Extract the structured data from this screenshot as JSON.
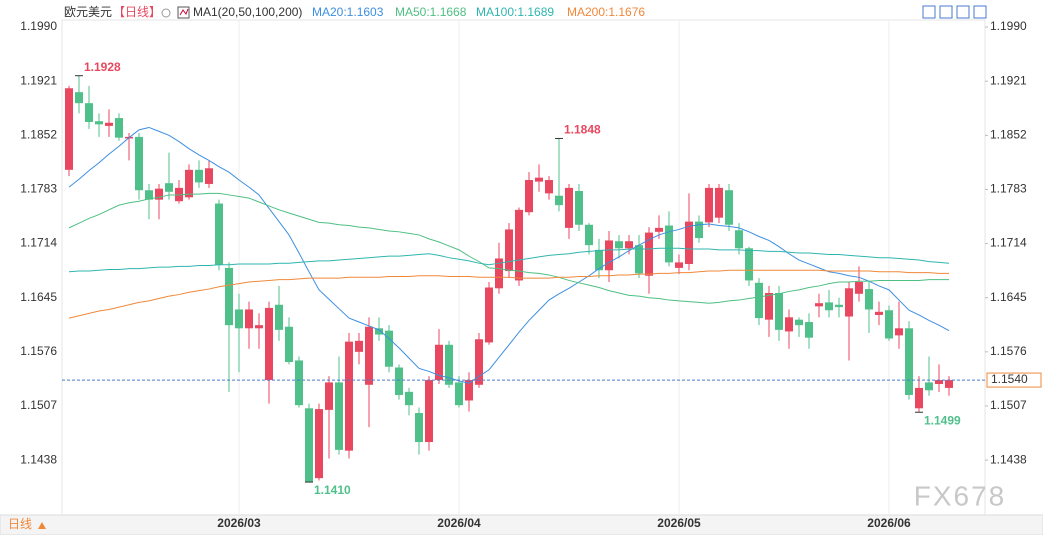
{
  "chart_data": {
    "type": "candlestick",
    "title": "欧元美元",
    "period": "【日线】",
    "indicator": "MA1(20,50,100,200)",
    "footer_label": "日线",
    "watermark": "FX678",
    "up_color": "#e8475f",
    "down_color": "#4fc08a",
    "categories": [
      null,
      null,
      null,
      null,
      null,
      null,
      null,
      null,
      null,
      null,
      null,
      null,
      null,
      null,
      null,
      null,
      null,
      "2026/03",
      null,
      null,
      null,
      null,
      null,
      null,
      null,
      null,
      null,
      null,
      null,
      null,
      null,
      null,
      null,
      null,
      null,
      null,
      null,
      null,
      null,
      "2026/04",
      null,
      null,
      null,
      null,
      null,
      null,
      null,
      null,
      null,
      null,
      null,
      null,
      null,
      null,
      null,
      null,
      null,
      null,
      null,
      null,
      null,
      "2026/05",
      null,
      null,
      null,
      null,
      null,
      null,
      null,
      null,
      null,
      null,
      null,
      null,
      null,
      null,
      null,
      null,
      null,
      null,
      null,
      null,
      "2026/06",
      null,
      null,
      null,
      null,
      null,
      null
    ],
    "open": [
      1.1808,
      1.1907,
      1.1893,
      1.187,
      1.1864,
      1.1874,
      1.1848,
      1.185,
      1.1782,
      1.177,
      1.1791,
      1.1768,
      1.1773,
      1.1808,
      1.179,
      1.1765,
      1.1683,
      1.163,
      1.1606,
      1.1606,
      1.154,
      1.1636,
      1.1608,
      1.1565,
      1.1504,
      1.1415,
      1.1502,
      1.1537,
      1.145,
      1.1576,
      1.1534,
      1.1606,
      1.1603,
      1.1556,
      1.1525,
      1.1498,
      1.1461,
      1.154,
      1.1585,
      1.1537,
      1.1514,
      1.1534,
      1.1588,
      1.1657,
      1.1679,
      1.1667,
      1.1754,
      1.1793,
      1.1778,
      1.1775,
      1.1734,
      1.1781,
      1.1738,
      1.1706,
      1.168,
      1.1717,
      1.1708,
      1.1712,
      1.1673,
      1.1729,
      1.1737,
      1.1683,
      1.1688,
      1.1742,
      1.1741,
      1.1747,
      1.1782,
      1.1731,
      1.1708,
      1.1664,
      1.1617,
      1.1651,
      1.1602,
      1.1617,
      1.1614,
      1.1634,
      1.1639,
      1.1636,
      1.1621,
      1.165,
      1.1656,
      1.1623,
      1.1629,
      1.1597,
      1.1606,
      1.1504,
      1.1537,
      1.1535,
      1.153
    ],
    "high": [
      1.1915,
      1.1928,
      1.1915,
      1.188,
      1.1885,
      1.188,
      1.1855,
      1.1855,
      1.179,
      1.179,
      1.183,
      1.1795,
      1.1815,
      1.182,
      1.182,
      1.177,
      1.169,
      1.165,
      1.164,
      1.1625,
      1.164,
      1.166,
      1.162,
      1.157,
      1.151,
      1.151,
      1.1545,
      1.157,
      1.16,
      1.16,
      1.162,
      1.162,
      1.161,
      1.156,
      1.153,
      1.1505,
      1.1545,
      1.1605,
      1.159,
      1.1545,
      1.155,
      1.16,
      1.1665,
      1.1715,
      1.174,
      1.176,
      1.1805,
      1.1815,
      1.18,
      1.1848,
      1.179,
      1.179,
      1.174,
      1.172,
      1.173,
      1.1725,
      1.1725,
      1.1725,
      1.1735,
      1.175,
      1.1755,
      1.17,
      1.1778,
      1.175,
      1.179,
      1.179,
      1.179,
      1.174,
      1.171,
      1.167,
      1.166,
      1.166,
      1.163,
      1.162,
      1.1625,
      1.165,
      1.1655,
      1.1645,
      1.1665,
      1.1685,
      1.1665,
      1.164,
      1.1635,
      1.164,
      1.1615,
      1.1545,
      1.157,
      1.156,
      1.1545
    ],
    "low": [
      1.18,
      1.188,
      1.186,
      1.185,
      1.185,
      1.1845,
      1.182,
      1.177,
      1.1745,
      1.1745,
      1.177,
      1.1765,
      1.177,
      1.1785,
      1.1785,
      1.168,
      1.1525,
      1.155,
      1.158,
      1.158,
      1.151,
      1.159,
      1.156,
      1.1505,
      1.141,
      1.1412,
      1.144,
      1.1445,
      1.144,
      1.156,
      1.148,
      1.159,
      1.155,
      1.1515,
      1.1495,
      1.1445,
      1.145,
      1.1535,
      1.153,
      1.1505,
      1.15,
      1.153,
      1.1585,
      1.165,
      1.167,
      1.166,
      1.175,
      1.178,
      1.177,
      1.1755,
      1.172,
      1.173,
      1.17,
      1.167,
      1.1665,
      1.1695,
      1.17,
      1.167,
      1.165,
      1.172,
      1.1685,
      1.1675,
      1.168,
      1.1715,
      1.1735,
      1.174,
      1.173,
      1.17,
      1.166,
      1.161,
      1.1595,
      1.159,
      1.158,
      1.1595,
      1.158,
      1.162,
      1.162,
      1.162,
      1.1565,
      1.164,
      1.16,
      1.161,
      1.159,
      1.158,
      1.1515,
      1.1499,
      1.152,
      1.1525,
      1.152
    ],
    "close": [
      1.1912,
      1.1893,
      1.1869,
      1.1866,
      1.1868,
      1.1849,
      1.185,
      1.1782,
      1.177,
      1.1784,
      1.178,
      1.1785,
      1.1808,
      1.1792,
      1.181,
      1.1687,
      1.161,
      1.1606,
      1.163,
      1.161,
      1.1632,
      1.1604,
      1.1563,
      1.1508,
      1.141,
      1.1503,
      1.1537,
      1.1451,
      1.1589,
      1.159,
      1.1608,
      1.1598,
      1.1557,
      1.1521,
      1.1508,
      1.1461,
      1.154,
      1.1585,
      1.1534,
      1.1508,
      1.154,
      1.1592,
      1.1658,
      1.1695,
      1.1732,
      1.1757,
      1.1795,
      1.1798,
      1.1795,
      1.1763,
      1.1785,
      1.1738,
      1.1712,
      1.168,
      1.1718,
      1.1708,
      1.1717,
      1.1676,
      1.1728,
      1.1734,
      1.169,
      1.169,
      1.1742,
      1.1721,
      1.1785,
      1.1785,
      1.1738,
      1.1708,
      1.1667,
      1.1619,
      1.1651,
      1.1604,
      1.162,
      1.161,
      1.1594,
      1.1638,
      1.1629,
      1.1633,
      1.1657,
      1.1665,
      1.163,
      1.1627,
      1.1593,
      1.1606,
      1.1521,
      1.153,
      1.1527,
      1.154,
      1.154
    ],
    "series": [
      {
        "name": "MA20:1.1603",
        "color": "#3d8fe0",
        "values": [
          1.1786,
          1.1796,
          1.1807,
          1.1817,
          1.1828,
          1.1838,
          1.1849,
          1.1859,
          1.1862,
          1.1857,
          1.1852,
          1.1844,
          1.1835,
          1.1827,
          1.182,
          1.1812,
          1.1805,
          1.1795,
          1.1786,
          1.1776,
          1.1759,
          1.1742,
          1.1725,
          1.1702,
          1.1678,
          1.1655,
          1.1643,
          1.1631,
          1.1619,
          1.1614,
          1.1609,
          1.1604,
          1.1593,
          1.1581,
          1.1568,
          1.1555,
          1.1551,
          1.1546,
          1.1543,
          1.1539,
          1.1536,
          1.1545,
          1.1553,
          1.1569,
          1.1585,
          1.1601,
          1.1616,
          1.1629,
          1.1642,
          1.165,
          1.1657,
          1.1665,
          1.1673,
          1.1682,
          1.169,
          1.1697,
          1.1705,
          1.1712,
          1.1719,
          1.1725,
          1.1729,
          1.1732,
          1.1736,
          1.1738,
          1.1739,
          1.1737,
          1.1736,
          1.1734,
          1.1729,
          1.1723,
          1.1718,
          1.171,
          1.1701,
          1.1693,
          1.1688,
          1.1683,
          1.1678,
          1.1676,
          1.1673,
          1.1671,
          1.1666,
          1.166,
          1.1655,
          1.1642,
          1.1629,
          1.1623,
          1.1616,
          1.161,
          1.1603
        ]
      },
      {
        "name": "MA50:1.1668",
        "color": "#4dbf82",
        "values": [
          1.1734,
          1.174,
          1.1746,
          1.1751,
          1.1757,
          1.1763,
          1.1766,
          1.1768,
          1.1771,
          1.1773,
          1.1776,
          1.1776,
          1.1777,
          1.1777,
          1.1778,
          1.1778,
          1.1776,
          1.1774,
          1.1772,
          1.1767,
          1.1762,
          1.1757,
          1.1753,
          1.1749,
          1.1745,
          1.1741,
          1.174,
          1.1738,
          1.1737,
          1.1735,
          1.1734,
          1.1732,
          1.173,
          1.1729,
          1.1727,
          1.1725,
          1.172,
          1.1716,
          1.1711,
          1.1706,
          1.1698,
          1.1691,
          1.1683,
          1.1682,
          1.168,
          1.1679,
          1.1677,
          1.1676,
          1.1674,
          1.1671,
          1.1667,
          1.1664,
          1.1661,
          1.1658,
          1.1654,
          1.1651,
          1.1648,
          1.1647,
          1.1645,
          1.1644,
          1.1642,
          1.1641,
          1.164,
          1.1639,
          1.1638,
          1.1639,
          1.1641,
          1.1642,
          1.1644,
          1.1646,
          1.1648,
          1.165,
          1.1653,
          1.1655,
          1.1658,
          1.166,
          1.1663,
          1.1665,
          1.1665,
          1.1666,
          1.1666,
          1.1667,
          1.1667,
          1.1667,
          1.1667,
          1.1667,
          1.1668,
          1.1668,
          1.1668
        ]
      },
      {
        "name": "MA100:1.1689",
        "color": "#2fb5b0",
        "values": [
          1.1678,
          1.1679,
          1.1679,
          1.168,
          1.1681,
          1.1681,
          1.1682,
          1.1682,
          1.1683,
          1.1684,
          1.1684,
          1.1685,
          1.1685,
          1.1686,
          1.1686,
          1.1687,
          1.1687,
          1.1688,
          1.1688,
          1.1688,
          1.1688,
          1.1689,
          1.1689,
          1.169,
          1.1691,
          1.1692,
          1.1692,
          1.1693,
          1.1694,
          1.1695,
          1.1696,
          1.1697,
          1.1698,
          1.1698,
          1.1699,
          1.17,
          1.1701,
          1.1699,
          1.1696,
          1.1694,
          1.1692,
          1.1689,
          1.1687,
          1.1689,
          1.1691,
          1.1693,
          1.1695,
          1.1697,
          1.1699,
          1.17,
          1.1701,
          1.1703,
          1.1704,
          1.1705,
          1.1706,
          1.1706,
          1.1707,
          1.1707,
          1.1707,
          1.1708,
          1.1708,
          1.1708,
          1.1707,
          1.1707,
          1.1707,
          1.1706,
          1.1706,
          1.1706,
          1.1705,
          1.1705,
          1.1704,
          1.1704,
          1.1703,
          1.1702,
          1.1702,
          1.1701,
          1.17,
          1.17,
          1.1699,
          1.1698,
          1.1697,
          1.1696,
          1.1696,
          1.1695,
          1.1694,
          1.1693,
          1.1691,
          1.169,
          1.1689
        ]
      },
      {
        "name": "MA200:1.1676",
        "color": "#f0883a",
        "values": [
          1.1619,
          1.1622,
          1.1625,
          1.1628,
          1.163,
          1.1633,
          1.1636,
          1.1639,
          1.1641,
          1.1644,
          1.1647,
          1.1649,
          1.1652,
          1.1654,
          1.1656,
          1.1659,
          1.1661,
          1.1663,
          1.1665,
          1.1666,
          1.1667,
          1.1668,
          1.1668,
          1.1669,
          1.167,
          1.167,
          1.167,
          1.167,
          1.1671,
          1.1671,
          1.1671,
          1.1671,
          1.1672,
          1.1672,
          1.1672,
          1.1673,
          1.1673,
          1.1673,
          1.1672,
          1.1672,
          1.1672,
          1.1671,
          1.1671,
          1.1671,
          1.1671,
          1.167,
          1.167,
          1.167,
          1.167,
          1.1671,
          1.1671,
          1.1672,
          1.1672,
          1.1673,
          1.1673,
          1.1674,
          1.1674,
          1.1675,
          1.1675,
          1.1676,
          1.1676,
          1.1677,
          1.1677,
          1.1678,
          1.1679,
          1.1679,
          1.168,
          1.168,
          1.168,
          1.168,
          1.168,
          1.168,
          1.168,
          1.168,
          1.168,
          1.168,
          1.1679,
          1.1679,
          1.1679,
          1.1679,
          1.1679,
          1.1678,
          1.1678,
          1.1678,
          1.1677,
          1.1677,
          1.1677,
          1.1676,
          1.1676
        ]
      }
    ],
    "annotations": [
      {
        "text": "1.1928"
      },
      {
        "text": "1.1848"
      },
      {
        "text": "1.1410"
      },
      {
        "text": "1.1499"
      }
    ],
    "last_price": {
      "value": 1.154,
      "label": "1.1540"
    },
    "ylim": [
      1.1368,
      1.1999
    ],
    "yticks": [
      1.1438,
      1.1507,
      1.1576,
      1.1645,
      1.1714,
      1.1783,
      1.1852,
      1.1921,
      {
        "value": 1.199,
        "label": "1.1990"
      }
    ]
  }
}
